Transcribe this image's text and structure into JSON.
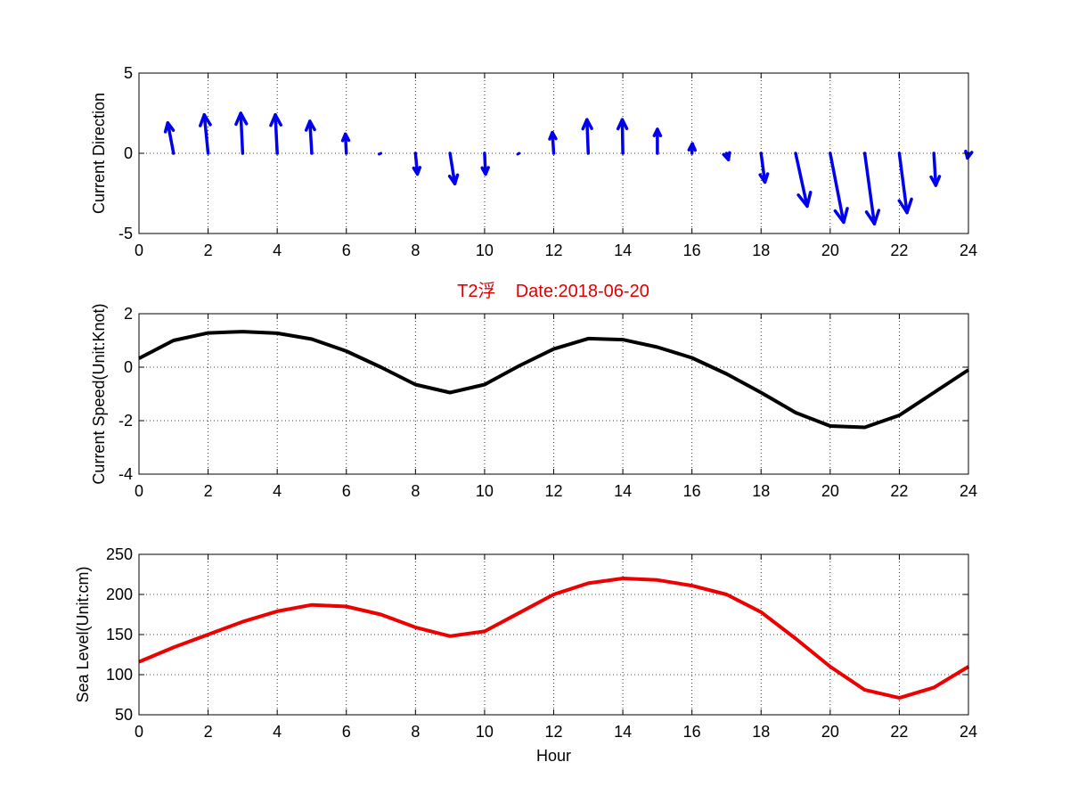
{
  "figure_title": "T2浮    Date:2018-06-20",
  "colors": {
    "direction": "#0000ee",
    "speed": "#000000",
    "sea_level": "#ee0000",
    "title": "#dd0000"
  },
  "chart_data": [
    {
      "type": "quiver",
      "ylabel": "Current Direction",
      "xlabel": "",
      "xlim": [
        0,
        24
      ],
      "ylim": [
        -5,
        5
      ],
      "xticks": [
        "0",
        "2",
        "4",
        "6",
        "8",
        "10",
        "12",
        "14",
        "16",
        "18",
        "20",
        "22",
        "24"
      ],
      "yticks": [
        "-5",
        "0",
        "5"
      ],
      "grid": true,
      "color": "#0000ee",
      "series": [
        {
          "x": [
            1,
            2,
            3,
            4,
            5,
            6,
            7,
            8,
            9,
            10,
            11,
            12,
            13,
            14,
            15,
            16,
            17,
            18,
            19,
            20,
            21,
            22,
            23,
            24
          ],
          "u": [
            -0.3,
            -0.2,
            -0.1,
            -0.1,
            -0.1,
            -0.05,
            -0.05,
            0.1,
            0.25,
            0.05,
            -0.03,
            -0.07,
            -0.07,
            -0.03,
            0.0,
            0.02,
            0.1,
            0.2,
            0.6,
            0.7,
            0.5,
            0.4,
            0.1,
            -0.05
          ],
          "v": [
            1.9,
            2.4,
            2.5,
            2.4,
            2.0,
            1.2,
            -0.1,
            -1.3,
            -1.9,
            -1.3,
            -0.1,
            1.3,
            2.1,
            2.1,
            1.5,
            0.6,
            -0.4,
            -1.8,
            -3.3,
            -4.3,
            -4.4,
            -3.7,
            -2.0,
            -0.3
          ]
        }
      ]
    },
    {
      "type": "line",
      "ylabel": "Current Speed(Unit:Knot)",
      "xlabel": "",
      "xlim": [
        0,
        24
      ],
      "ylim": [
        -4,
        2
      ],
      "xticks": [
        "0",
        "2",
        "4",
        "6",
        "8",
        "10",
        "12",
        "14",
        "16",
        "18",
        "20",
        "22",
        "24"
      ],
      "yticks": [
        "-4",
        "-2",
        "0",
        "2"
      ],
      "grid": true,
      "color": "#000000",
      "series": [
        {
          "x": [
            0,
            1,
            2,
            3,
            4,
            5,
            6,
            7,
            8,
            9,
            10,
            11,
            12,
            13,
            14,
            15,
            16,
            17,
            18,
            19,
            20,
            21,
            22,
            23,
            24
          ],
          "values": [
            0.33,
            1.0,
            1.28,
            1.33,
            1.27,
            1.05,
            0.6,
            0.0,
            -0.65,
            -0.95,
            -0.65,
            0.05,
            0.68,
            1.07,
            1.03,
            0.75,
            0.35,
            -0.25,
            -0.95,
            -1.7,
            -2.2,
            -2.25,
            -1.8,
            -0.95,
            -0.1
          ]
        }
      ]
    },
    {
      "type": "line",
      "ylabel": "Sea Level(Unit:cm)",
      "xlabel": "Hour",
      "xlim": [
        0,
        24
      ],
      "ylim": [
        50,
        250
      ],
      "xticks": [
        "0",
        "2",
        "4",
        "6",
        "8",
        "10",
        "12",
        "14",
        "16",
        "18",
        "20",
        "22",
        "24"
      ],
      "yticks": [
        "50",
        "100",
        "150",
        "200",
        "250"
      ],
      "grid": true,
      "color": "#ee0000",
      "series": [
        {
          "x": [
            0,
            1,
            2,
            3,
            4,
            5,
            6,
            7,
            8,
            9,
            10,
            11,
            12,
            13,
            14,
            15,
            16,
            17,
            18,
            19,
            20,
            21,
            22,
            23,
            24
          ],
          "values": [
            116,
            134,
            150,
            166,
            179,
            187,
            185,
            175,
            159,
            148,
            154,
            177,
            200,
            214,
            220,
            218,
            211,
            200,
            178,
            145,
            110,
            81,
            71,
            84,
            110
          ]
        }
      ]
    }
  ]
}
